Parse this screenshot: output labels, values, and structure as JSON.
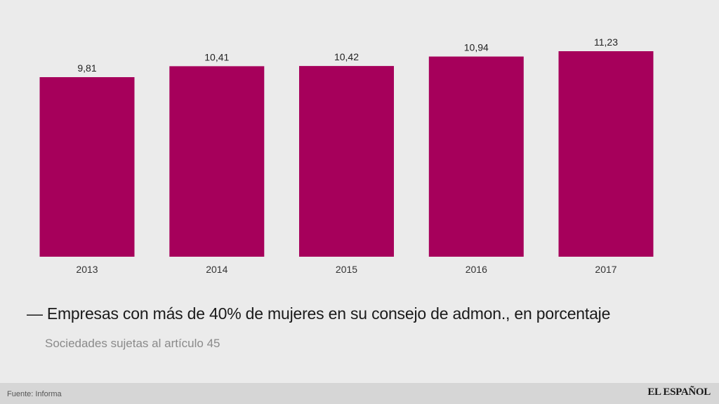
{
  "chart_data": {
    "type": "bar",
    "categories": [
      "2013",
      "2014",
      "2015",
      "2016",
      "2017"
    ],
    "values": [
      9.81,
      10.41,
      10.42,
      10.94,
      11.23
    ],
    "value_labels": [
      "9,81",
      "10,41",
      "10,42",
      "10,94",
      "11,23"
    ],
    "title": "— Empresas con más de 40% de mujeres en su consejo de admon., en porcentaje",
    "subtitle": "Sociedades sujetas al artículo 45",
    "xlabel": "",
    "ylabel": "",
    "ylim": [
      0,
      11.23
    ],
    "grid": false,
    "bar_color": "#a6005b"
  },
  "title": {
    "dash": "—",
    "text": "Empresas con más de 40% de mujeres en su consejo de admon., en porcentaje"
  },
  "subtitle": "Sociedades sujetas al artículo 45",
  "footer": {
    "source": "Fuente: Informa",
    "brand": "EL ESPAÑOL"
  }
}
